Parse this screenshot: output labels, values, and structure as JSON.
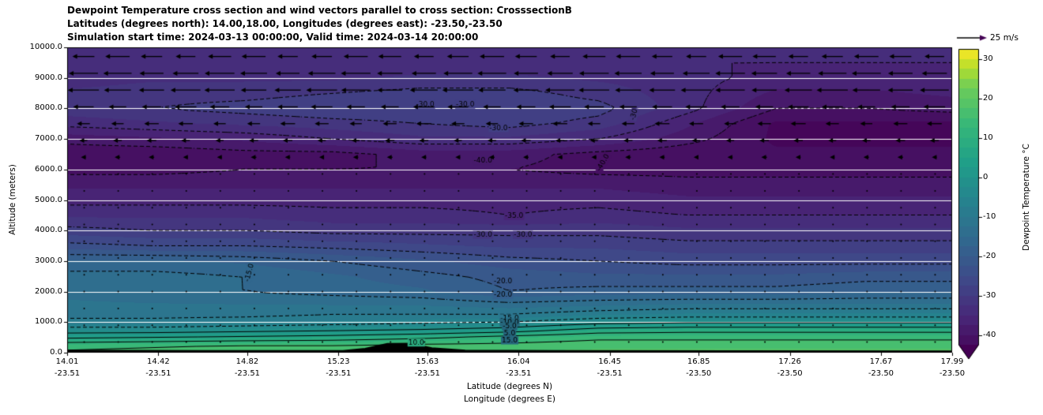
{
  "chart_data": {
    "type": "heatmap",
    "title_lines": [
      "Dewpoint Temperature cross section and wind vectors parallel to cross section: CrosssectionB",
      "Latitudes (degrees north): 14.00,18.00, Longitudes (degrees east): -23.50,-23.50",
      "Simulation start time: 2024-03-13 00:00:00, Valid time: 2024-03-14 20:00:00"
    ],
    "xlabel_lines": [
      "Latitude (degrees N)",
      "Longitude (degrees E)"
    ],
    "ylabel": "Altitude (meters)",
    "x_range": [
      14.01,
      17.99
    ],
    "y_range": [
      0,
      10000
    ],
    "x_ticks": [
      {
        "lat": "14.01",
        "lon": "-23.51"
      },
      {
        "lat": "14.42",
        "lon": "-23.51"
      },
      {
        "lat": "14.82",
        "lon": "-23.51"
      },
      {
        "lat": "15.23",
        "lon": "-23.51"
      },
      {
        "lat": "15.63",
        "lon": "-23.51"
      },
      {
        "lat": "16.04",
        "lon": "-23.51"
      },
      {
        "lat": "16.45",
        "lon": "-23.51"
      },
      {
        "lat": "16.85",
        "lon": "-23.50"
      },
      {
        "lat": "17.26",
        "lon": "-23.50"
      },
      {
        "lat": "17.67",
        "lon": "-23.50"
      },
      {
        "lat": "17.99",
        "lon": "-23.50"
      }
    ],
    "y_ticks": [
      {
        "value": 0,
        "label": "0.0"
      },
      {
        "value": 1000,
        "label": "1000.0"
      },
      {
        "value": 2000,
        "label": "2000.0"
      },
      {
        "value": 3000,
        "label": "3000.0"
      },
      {
        "value": 4000,
        "label": "4000.0"
      },
      {
        "value": 5000,
        "label": "5000.0"
      },
      {
        "value": 6000,
        "label": "6000.0"
      },
      {
        "value": 7000,
        "label": "7000.0"
      },
      {
        "value": 8000,
        "label": "8000.0"
      },
      {
        "value": 9000,
        "label": "9000.0"
      },
      {
        "value": 10000,
        "label": "10000.0"
      }
    ],
    "gridlines_alt": [
      1000,
      2000,
      3000,
      4000,
      5000,
      6000,
      7000,
      8000,
      9000
    ],
    "x": [
      14.01,
      14.4,
      14.8,
      15.2,
      15.6,
      16.0,
      16.4,
      16.8,
      17.2,
      17.6,
      17.99
    ],
    "y": [
      0,
      250,
      500,
      750,
      1000,
      1250,
      1500,
      2000,
      2500,
      3000,
      3500,
      4000,
      4500,
      5000,
      5500,
      6000,
      6500,
      7000,
      7500,
      8000,
      8500,
      9000,
      9500,
      10000
    ],
    "values": [
      [
        16,
        17,
        18,
        18,
        18,
        18,
        18,
        18,
        18,
        18,
        18
      ],
      [
        13,
        14,
        15,
        15,
        16,
        16,
        17,
        17,
        17,
        17,
        17
      ],
      [
        4,
        5,
        6,
        7,
        9,
        12,
        14,
        14,
        14,
        14,
        14
      ],
      [
        -3,
        -3,
        -2,
        -1,
        0,
        2,
        7,
        8,
        8,
        8,
        8
      ],
      [
        -9,
        -9,
        -8,
        -7,
        -6,
        -5,
        -2,
        -1,
        -1,
        -1,
        -1
      ],
      [
        -11,
        -11,
        -11,
        -10,
        -10,
        -10,
        -8,
        -7,
        -7,
        -7,
        -7
      ],
      [
        -12,
        -12,
        -12,
        -12,
        -12,
        -13,
        -12,
        -11,
        -11,
        -11,
        -11
      ],
      [
        -13,
        -14,
        -15,
        -16,
        -17,
        -20,
        -19,
        -19,
        -19,
        -18,
        -18
      ],
      [
        -14,
        -14,
        -15,
        -17,
        -19,
        -21,
        -22,
        -22,
        -22,
        -21,
        -21
      ],
      [
        -17,
        -17,
        -18,
        -20,
        -22,
        -24,
        -25,
        -26,
        -26,
        -26,
        -26
      ],
      [
        -24,
        -25,
        -25,
        -26,
        -27,
        -28,
        -28,
        -29,
        -29,
        -29,
        -29
      ],
      [
        -29,
        -30,
        -30,
        -31,
        -31,
        -31,
        -31,
        -32,
        -32,
        -32,
        -32
      ],
      [
        -33,
        -33,
        -33,
        -34,
        -34,
        -35,
        -34,
        -35,
        -35,
        -35,
        -35
      ],
      [
        -36,
        -36,
        -36,
        -36,
        -36,
        -36,
        -36,
        -37,
        -37,
        -37,
        -37
      ],
      [
        -38,
        -38,
        -38,
        -38,
        -38,
        -38,
        -38,
        -39,
        -39,
        -39,
        -39
      ],
      [
        -41,
        -41,
        -40,
        -40,
        -40,
        -40,
        -41,
        -41,
        -41,
        -41,
        -41
      ],
      [
        -42,
        -42,
        -41,
        -41,
        -39,
        -39,
        -41,
        -42,
        -42,
        -42,
        -42
      ],
      [
        -39,
        -38,
        -37,
        -35,
        -33,
        -33,
        -35,
        -39,
        -43,
        -43,
        -43
      ],
      [
        -34,
        -33,
        -32,
        -31,
        -30,
        -29,
        -31,
        -37,
        -43,
        -43,
        -43
      ],
      [
        -31,
        -30,
        -29,
        -28,
        -28,
        -28,
        -29,
        -34,
        -40,
        -40,
        -39
      ],
      [
        -32,
        -31,
        -31,
        -30,
        -29,
        -29,
        -31,
        -34,
        -38,
        -38,
        -37
      ],
      [
        -34,
        -33,
        -33,
        -33,
        -32,
        -32,
        -33,
        -34,
        -36,
        -36,
        -36
      ],
      [
        -34,
        -34,
        -34,
        -34,
        -34,
        -34,
        -34,
        -35,
        -35,
        -35,
        -35
      ],
      [
        -33,
        -33,
        -33,
        -33,
        -33,
        -33,
        -33,
        -34,
        -34,
        -34,
        -34
      ]
    ],
    "contour_levels_dashed": [
      -40,
      -35,
      -30,
      -25,
      -20,
      -15,
      -10,
      -5
    ],
    "contour_levels_solid": [
      0,
      5,
      10,
      15
    ],
    "contour_labels": [
      {
        "text": "-30.0",
        "lat": 15.62,
        "alt": 8120,
        "rot": 0
      },
      {
        "text": "-30.0",
        "lat": 15.8,
        "alt": 8120,
        "rot": 0
      },
      {
        "text": "-30",
        "lat": 16.56,
        "alt": 7800,
        "rot": -75
      },
      {
        "text": "-30.0",
        "lat": 15.95,
        "alt": 7350,
        "rot": 0
      },
      {
        "text": "-40.0",
        "lat": 15.88,
        "alt": 6280,
        "rot": 0
      },
      {
        "text": "-40.0",
        "lat": 16.42,
        "alt": 6220,
        "rot": -60
      },
      {
        "text": "-35.0",
        "lat": 16.02,
        "alt": 4480,
        "rot": 0
      },
      {
        "text": "-30.0",
        "lat": 15.88,
        "alt": 3860,
        "rot": 0
      },
      {
        "text": "-30.0",
        "lat": 16.06,
        "alt": 3860,
        "rot": 0
      },
      {
        "text": "-20.0",
        "lat": 15.97,
        "alt": 2340,
        "rot": 0
      },
      {
        "text": "-20.0",
        "lat": 15.97,
        "alt": 1890,
        "rot": 0
      },
      {
        "text": "-15.0",
        "lat": 14.83,
        "alt": 2620,
        "rot": -75
      },
      {
        "text": "-15.0",
        "lat": 16.0,
        "alt": 1130,
        "rot": 0
      },
      {
        "text": "-10.0",
        "lat": 16.0,
        "alt": 990,
        "rot": 0
      },
      {
        "text": "-5.0",
        "lat": 16.0,
        "alt": 860,
        "rot": 0
      },
      {
        "text": "5.0",
        "lat": 16.0,
        "alt": 630,
        "rot": 0
      },
      {
        "text": "15.0",
        "lat": 16.0,
        "alt": 400,
        "rot": 0
      },
      {
        "text": "10.0",
        "lat": 15.58,
        "alt": 330,
        "rot": 0
      }
    ],
    "terrain": {
      "lats": [
        14.01,
        14.6,
        15.0,
        15.25,
        15.35,
        15.45,
        15.55,
        15.65,
        15.8,
        16.2,
        17.0,
        17.99
      ],
      "heights": [
        70,
        60,
        55,
        60,
        130,
        290,
        295,
        150,
        70,
        55,
        50,
        45
      ]
    },
    "quiver": {
      "key_label": "25 m/s",
      "ref_speed": 25,
      "cols": 26,
      "rows": [
        {
          "alt": 9700,
          "u": -17
        },
        {
          "alt": 9150,
          "u": -21
        },
        {
          "alt": 8600,
          "u": -22
        },
        {
          "alt": 8050,
          "u": -15
        },
        {
          "alt": 7500,
          "u": -10
        },
        {
          "alt": 6950,
          "u": -6
        },
        {
          "alt": 6400,
          "u": -3
        },
        {
          "alt": 5850,
          "u": -1.5
        },
        {
          "alt": 5300,
          "u": -0.8
        },
        {
          "alt": 4750,
          "u": -0.6
        },
        {
          "alt": 4200,
          "u": -0.6
        },
        {
          "alt": 3650,
          "u": -0.6
        },
        {
          "alt": 3100,
          "u": -0.8
        },
        {
          "alt": 2550,
          "u": -0.9
        },
        {
          "alt": 2000,
          "u": -0.9
        },
        {
          "alt": 1450,
          "u": -0.7
        },
        {
          "alt": 900,
          "u": -0.6
        },
        {
          "alt": 350,
          "u": -0.6
        }
      ]
    },
    "colorbar": {
      "label": "Dewpoint Temperature °C",
      "vmin": -45,
      "vmax": 32.5,
      "band_step": 2.5,
      "extend": "min",
      "ticks": [
        {
          "value": 30,
          "label": "30"
        },
        {
          "value": 20,
          "label": "20"
        },
        {
          "value": 10,
          "label": "10"
        },
        {
          "value": 0,
          "label": "0"
        },
        {
          "value": -10,
          "label": "-10"
        },
        {
          "value": -20,
          "label": "-20"
        },
        {
          "value": -30,
          "label": "-30"
        },
        {
          "value": -40,
          "label": "-40"
        }
      ]
    }
  }
}
